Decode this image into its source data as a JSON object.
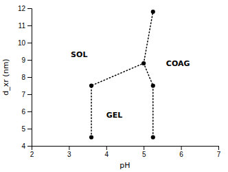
{
  "chart_data": {
    "type": "line",
    "xlabel": "pH",
    "ylabel": "d_xr (nm)",
    "xlim": [
      2,
      7
    ],
    "ylim": [
      4,
      12
    ],
    "xticks": [
      2,
      3,
      4,
      5,
      6,
      7
    ],
    "yticks": [
      4,
      5,
      6,
      7,
      8,
      9,
      10,
      11,
      12
    ],
    "grid": false,
    "series": [
      {
        "x": [
          3.6,
          3.6,
          5.0
        ],
        "values": [
          4.5,
          7.5,
          8.8
        ],
        "color": "black",
        "line_style": "dotted"
      },
      {
        "x": [
          5.0,
          5.25,
          5.25
        ],
        "values": [
          8.8,
          7.5,
          4.5
        ],
        "color": "black",
        "line_style": "dotted"
      },
      {
        "x": [
          5.0,
          5.25
        ],
        "values": [
          8.8,
          11.8
        ],
        "color": "black",
        "line_style": "dotted"
      },
      {
        "type": "scatter",
        "x": [
          3.6,
          3.6,
          5.0,
          5.25,
          5.25,
          5.25
        ],
        "values": [
          4.5,
          7.5,
          8.8,
          4.5,
          7.5,
          11.8
        ],
        "color": "black",
        "marker": "circle"
      }
    ],
    "annotations": [
      {
        "text": "SOL",
        "x": 3.05,
        "y": 9.3
      },
      {
        "text": "GEL",
        "x": 4.0,
        "y": 5.8
      },
      {
        "text": "COAG",
        "x": 5.6,
        "y": 8.8
      }
    ]
  }
}
